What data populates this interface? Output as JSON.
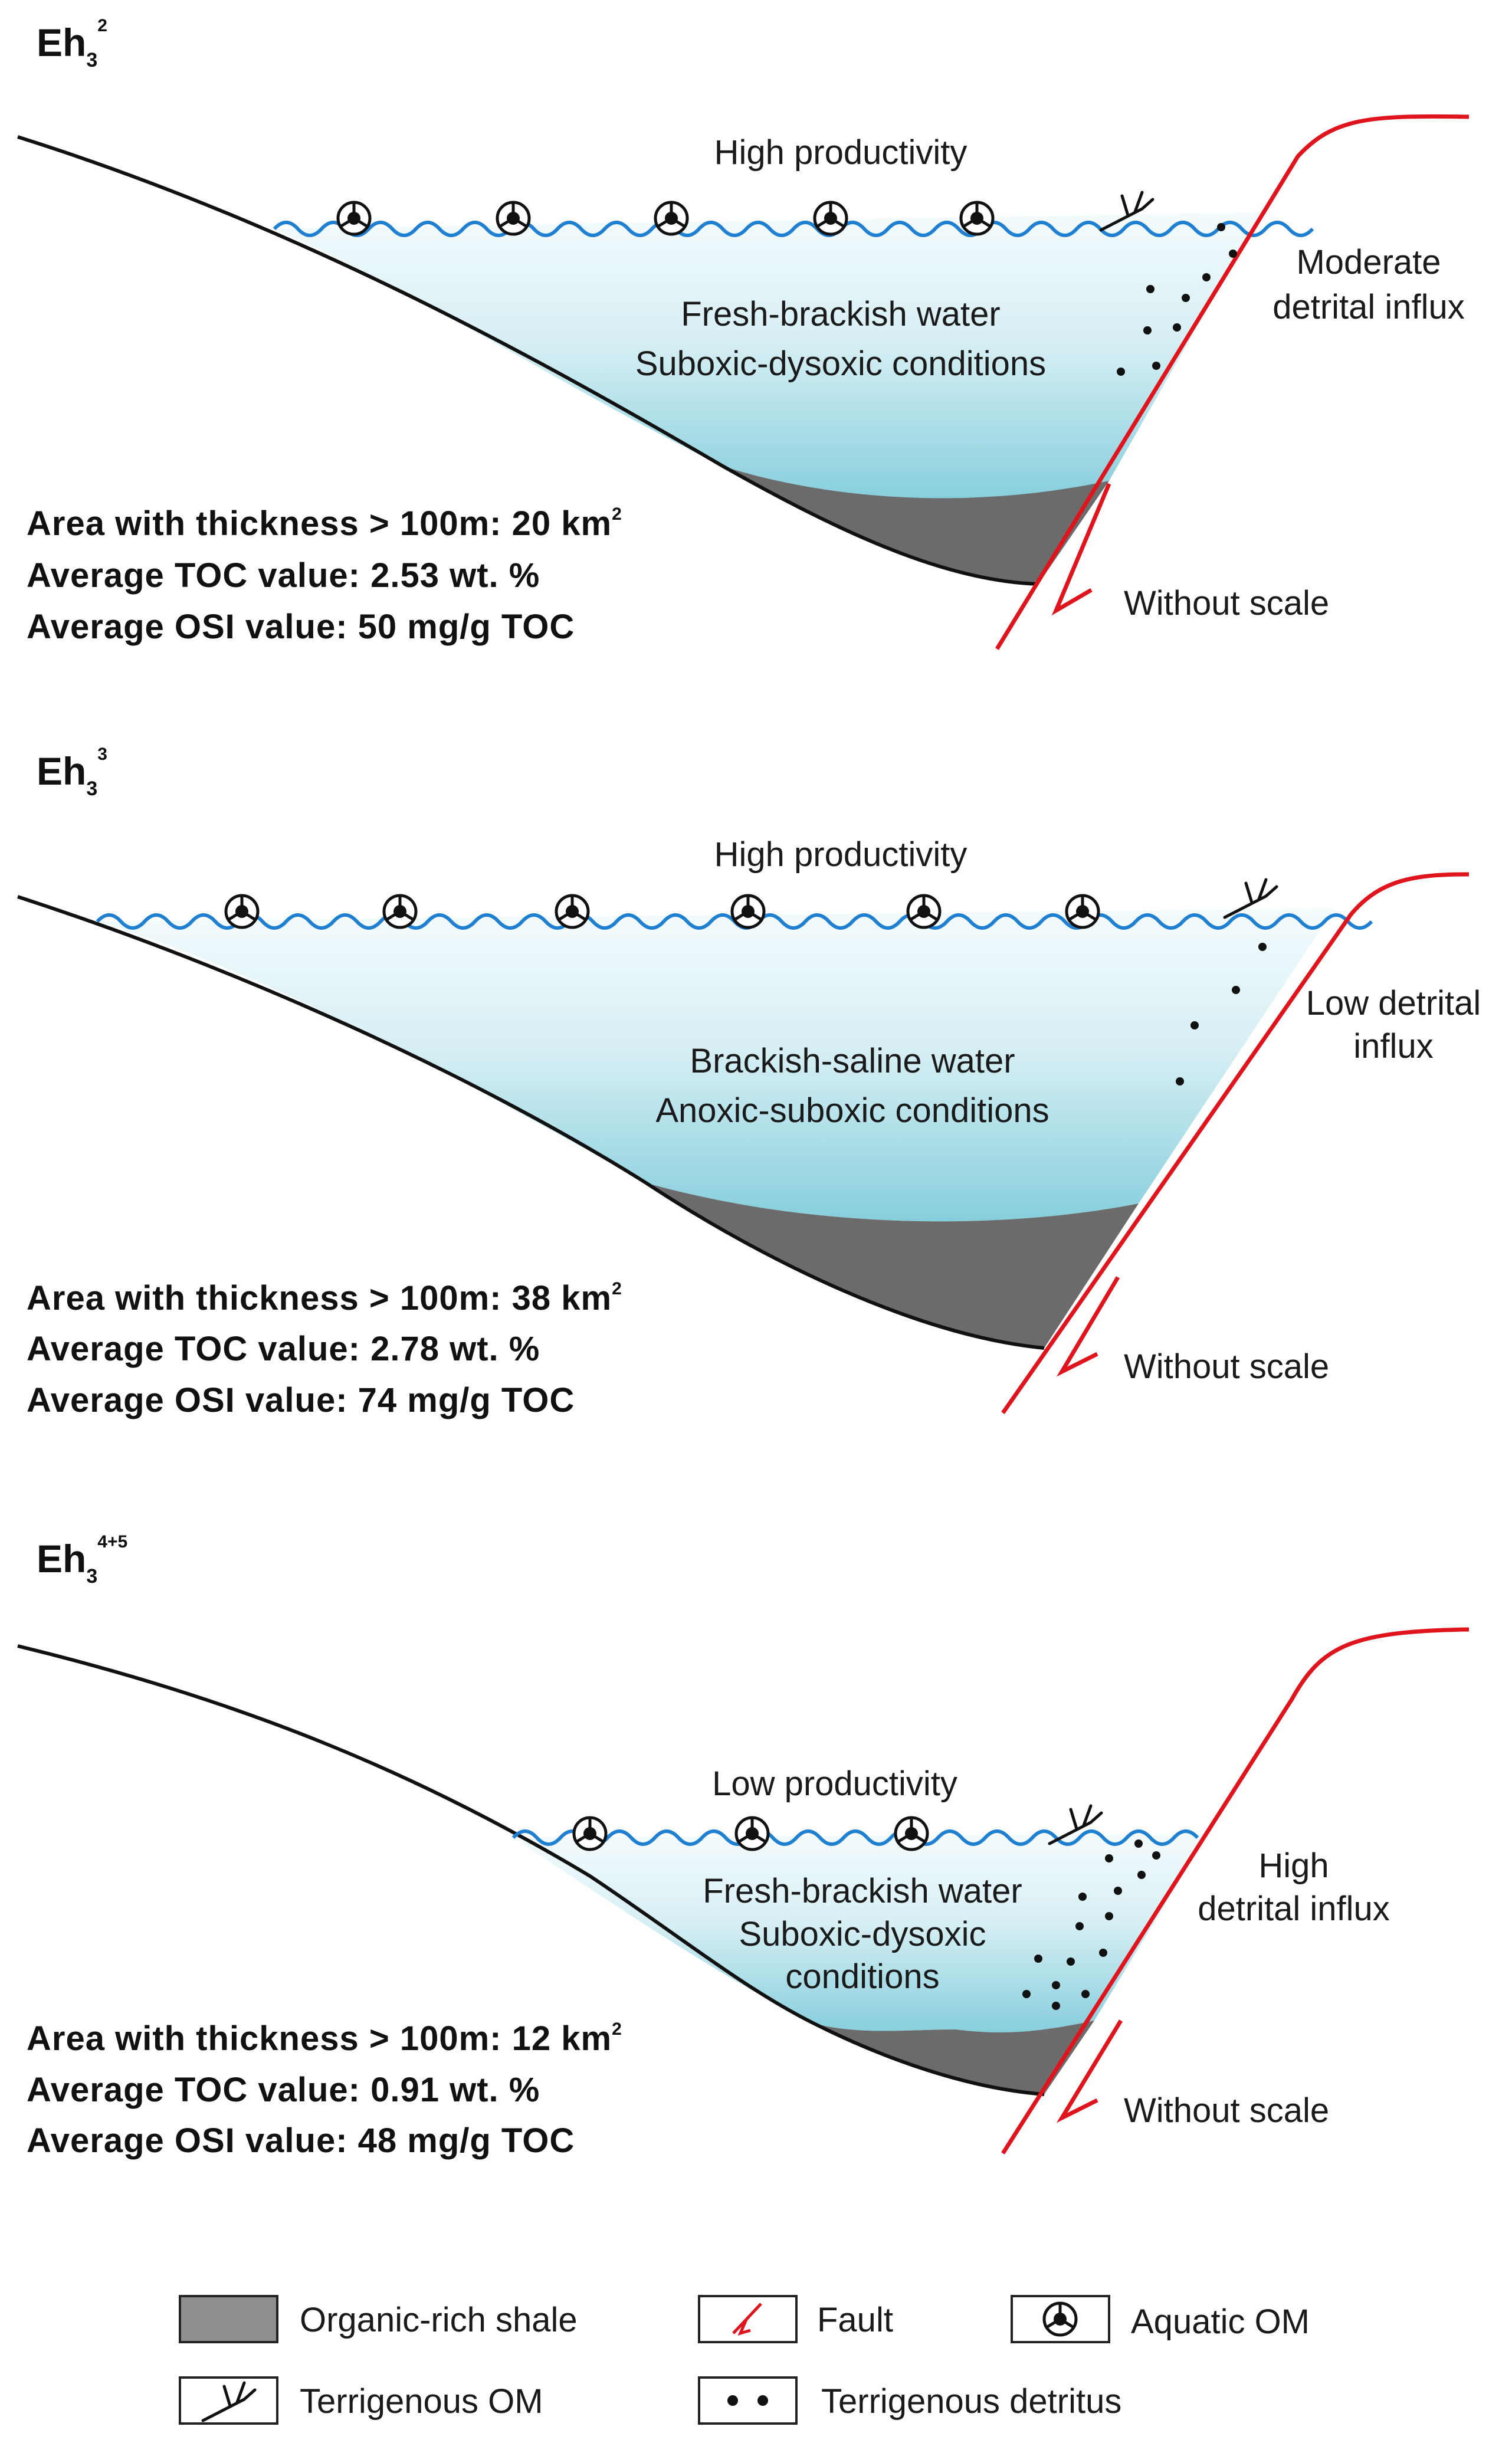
{
  "panels": [
    {
      "title_main": "Eh",
      "title_sub": "3",
      "title_sup": "2",
      "productivity": "High productivity",
      "water_line1": "Fresh-brackish water",
      "water_line2": "Suboxic-dysoxic conditions",
      "water_line3": "",
      "detrital_line1": "Moderate",
      "detrital_line2": "detrital influx",
      "info_area_prefix": "Area with  thickness  > 100m: 20 km",
      "info_area_sup": "2",
      "info_toc": "Average TOC value: 2.53 wt. %",
      "info_osi": "Average OSI value: 50 mg/g TOC",
      "scale_note": "Without scale"
    },
    {
      "title_main": "Eh",
      "title_sub": "3",
      "title_sup": "3",
      "productivity": "High productivity",
      "water_line1": "Brackish-saline water",
      "water_line2": "Anoxic-suboxic conditions",
      "water_line3": "",
      "detrital_line1": "Low detrital",
      "detrital_line2": "influx",
      "info_area_prefix": "Area with  thickness  > 100m: 38 km",
      "info_area_sup": "2",
      "info_toc": "Average TOC value: 2.78 wt. %",
      "info_osi": "Average OSI value: 74 mg/g TOC",
      "scale_note": "Without scale"
    },
    {
      "title_main": "Eh",
      "title_sub": "3",
      "title_sup": "4+5",
      "productivity": "Low productivity",
      "water_line1": "Fresh-brackish water",
      "water_line2": "Suboxic-dysoxic",
      "water_line3": "conditions",
      "detrital_line1": "High",
      "detrital_line2": "detrital influx",
      "info_area_prefix": "Area with  thickness  > 100m: 12 km",
      "info_area_sup": "2",
      "info_toc": "Average TOC value: 0.91 wt. %",
      "info_osi": "Average OSI value: 48 mg/g TOC",
      "scale_note": "Without scale"
    }
  ],
  "legend": {
    "shale": "Organic-rich shale",
    "fault": "Fault",
    "aquatic": "Aquatic OM",
    "terrigenous_om": "Terrigenous OM",
    "detritus": "Terrigenous detritus"
  },
  "colors": {
    "water_top": "#f2fafc",
    "water_bottom": "#8fd2df",
    "wave": "#1f7fd0",
    "shale": "#6b6b6b",
    "fault": "#e0141c",
    "basin_line": "#111111"
  }
}
